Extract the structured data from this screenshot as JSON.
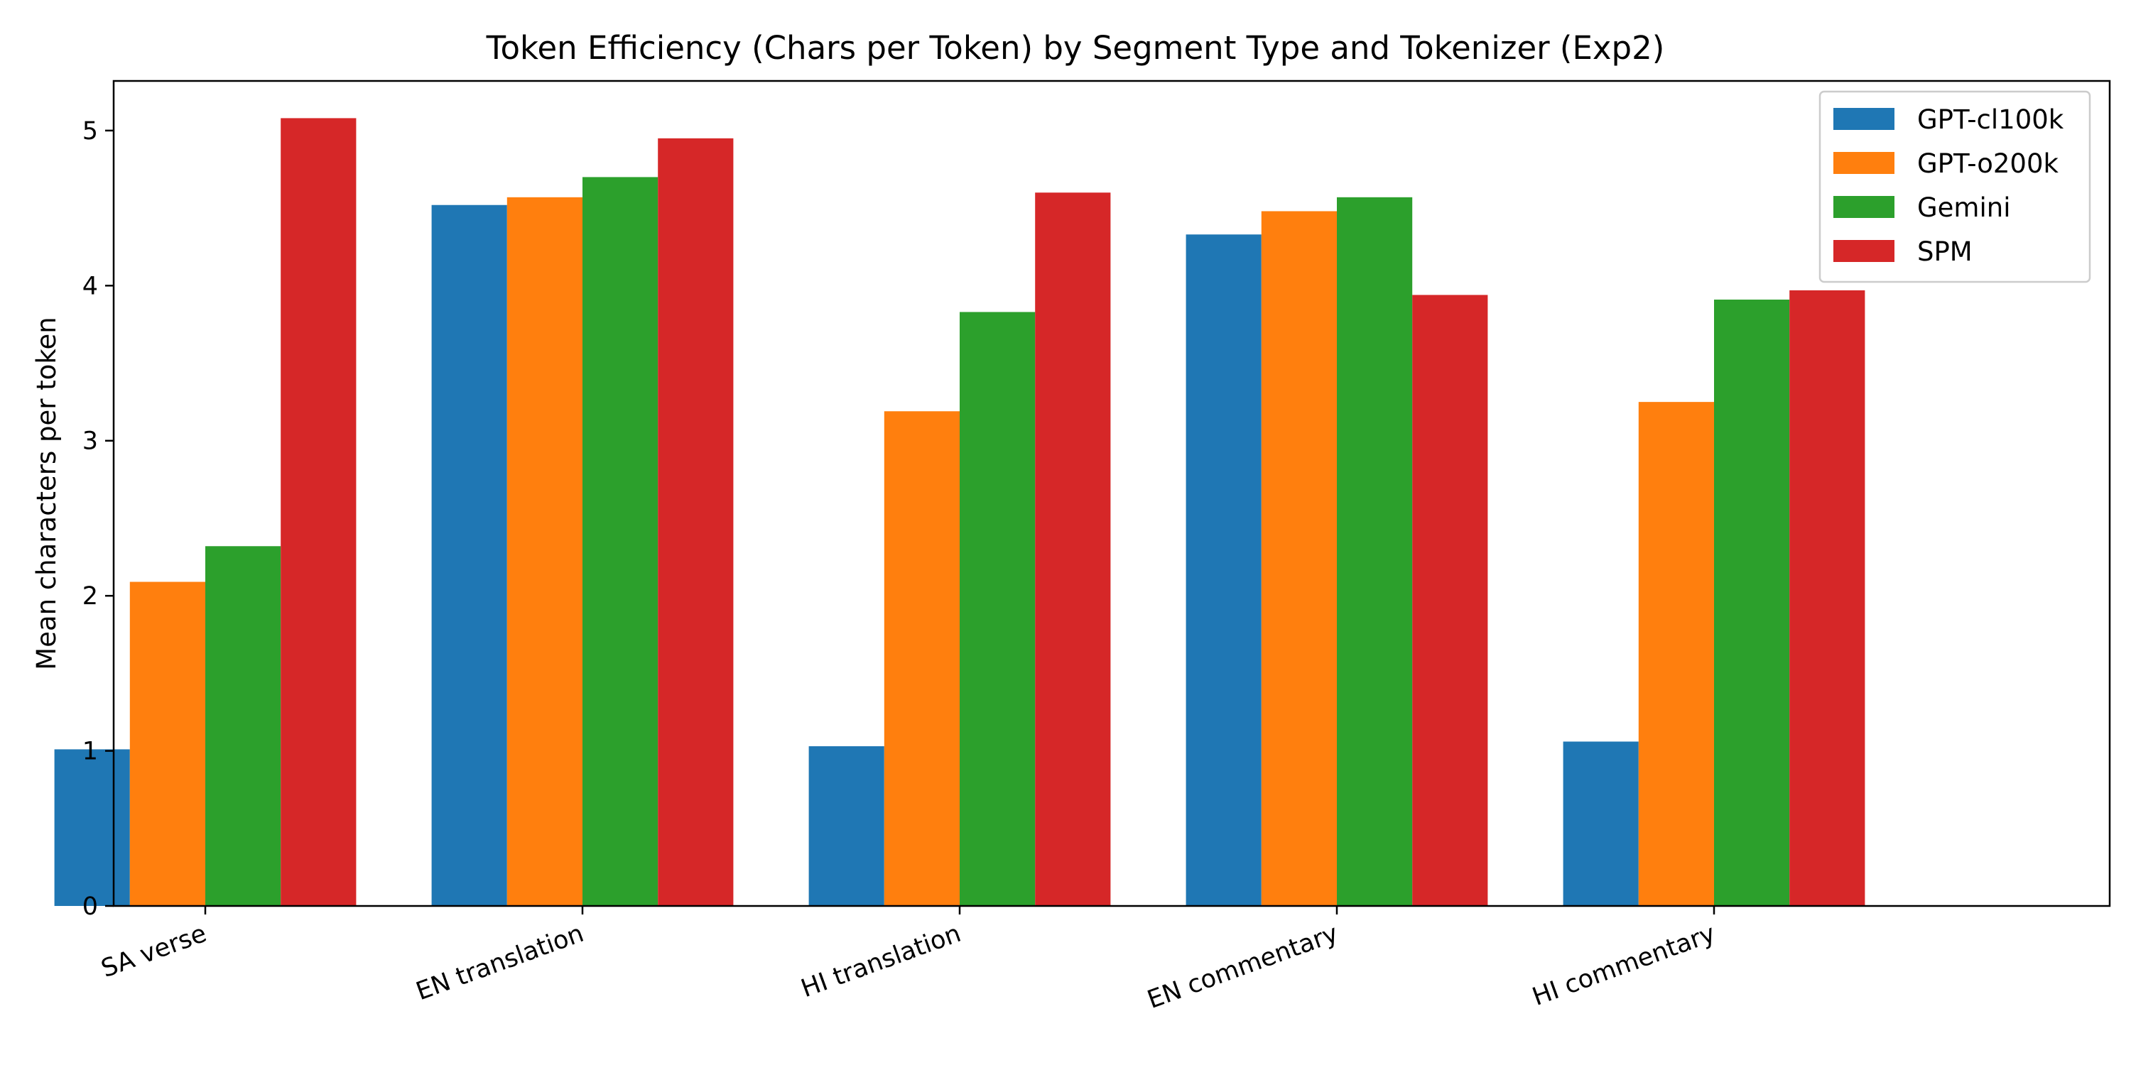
{
  "chart_data": {
    "type": "bar",
    "title": "Token Efficiency (Chars per Token) by Segment Type and Tokenizer (Exp2)",
    "xlabel": "",
    "ylabel": "Mean characters per token",
    "ylim": [
      0,
      5.32
    ],
    "yticks": [
      0,
      1,
      2,
      3,
      4,
      5
    ],
    "grid": false,
    "legend_position": "top-right",
    "categories": [
      "SA verse",
      "EN translation",
      "HI translation",
      "EN commentary",
      "HI commentary"
    ],
    "series": [
      {
        "name": "GPT-cl100k",
        "color": "#1f77b4",
        "values": [
          1.01,
          4.52,
          1.03,
          4.33,
          1.06
        ]
      },
      {
        "name": "GPT-o200k",
        "color": "#ff7f0e",
        "values": [
          2.09,
          4.57,
          3.19,
          4.48,
          3.25
        ]
      },
      {
        "name": "Gemini",
        "color": "#2ca02c",
        "values": [
          2.32,
          4.7,
          3.83,
          4.57,
          3.91
        ]
      },
      {
        "name": "SPM",
        "color": "#d62728",
        "values": [
          5.08,
          4.95,
          4.6,
          3.94,
          3.97
        ]
      }
    ]
  }
}
